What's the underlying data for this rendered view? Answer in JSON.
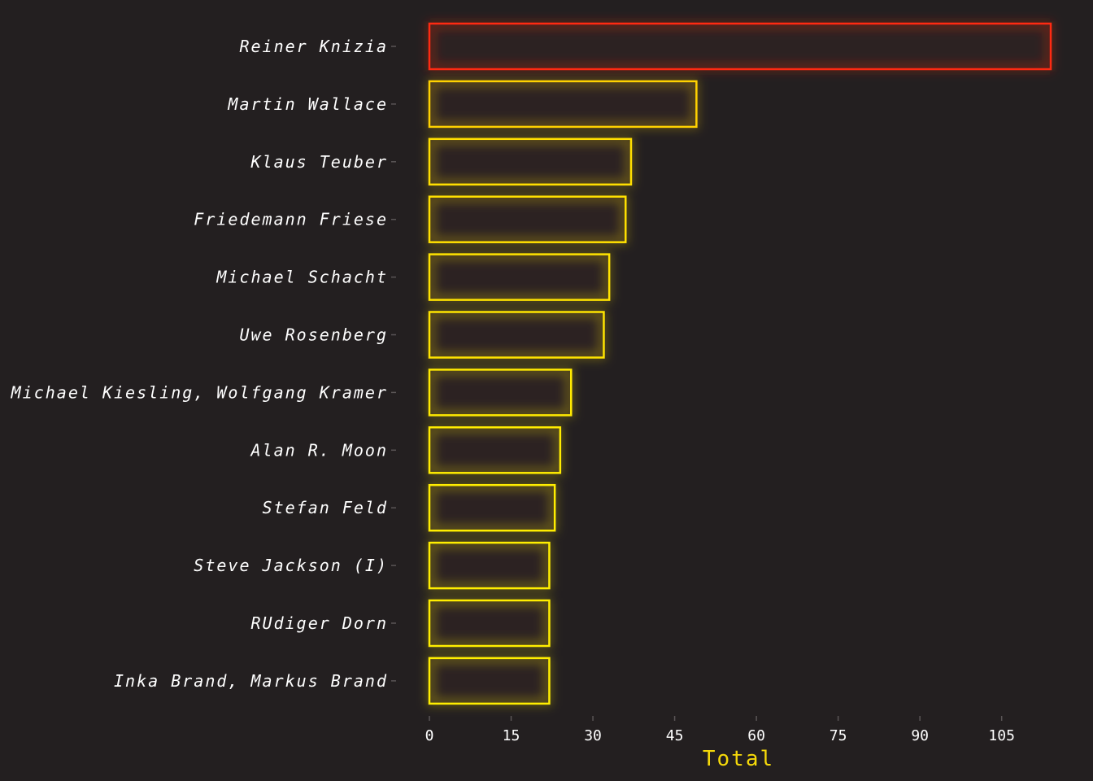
{
  "chart_data": {
    "type": "bar",
    "orientation": "horizontal",
    "categories": [
      "Reiner Knizia",
      "Martin Wallace",
      "Klaus Teuber",
      "Friedemann Friese",
      "Michael Schacht",
      "Uwe Rosenberg",
      "Michael Kiesling, Wolfgang Kramer",
      "Alan R. Moon",
      "Stefan Feld",
      "Steve Jackson (I)",
      "RUdiger Dorn",
      "Inka Brand, Markus Brand"
    ],
    "values": [
      114,
      49,
      37,
      36,
      33,
      32,
      26,
      24,
      23,
      22,
      22,
      22
    ],
    "title": "",
    "xlabel": "Total",
    "ylabel": "",
    "xlim": [
      0,
      114
    ],
    "xticks": [
      0,
      15,
      30,
      45,
      60,
      75,
      90,
      105
    ],
    "grid": false,
    "colors": {
      "background": "#231f20",
      "bar_fill": "#2c2222",
      "stroke_max": "#ff2a12",
      "stroke_mid": "#ffbf00",
      "stroke_min": "#ffee00",
      "axis_title": "#f5d90a",
      "text": "#ffffff"
    }
  }
}
